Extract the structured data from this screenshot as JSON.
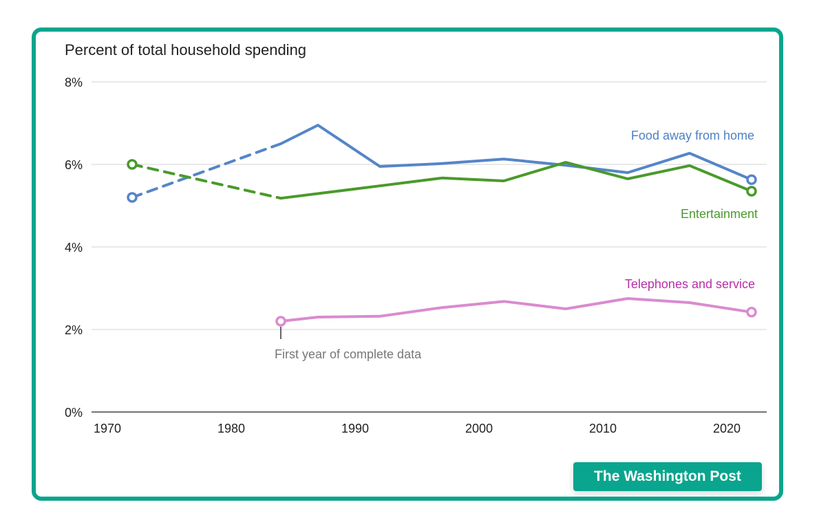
{
  "chart_data": {
    "type": "line",
    "title": "Percent of total household spending",
    "xlabel": "",
    "ylabel": "",
    "xlim": [
      1969,
      2024
    ],
    "ylim": [
      0,
      8
    ],
    "x_ticks": [
      1970,
      1980,
      1990,
      2000,
      2010,
      2020
    ],
    "y_ticks": [
      0,
      2,
      4,
      6,
      8
    ],
    "y_tick_labels": [
      "0%",
      "2%",
      "4%",
      "6%",
      "8%"
    ],
    "grid": true,
    "series": [
      {
        "name": "Food away from home",
        "color": "#5585c8",
        "label_color": "#4f7fc4",
        "dashed_until": 1984,
        "x": [
          1972,
          1984,
          1987,
          1992,
          1997,
          2002,
          2007,
          2012,
          2017,
          2022
        ],
        "y": [
          5.2,
          6.5,
          6.95,
          5.95,
          6.02,
          6.13,
          5.98,
          5.8,
          6.27,
          5.63
        ]
      },
      {
        "name": "Entertainment",
        "color": "#4a9a2a",
        "label_color": "#4a9a2a",
        "dashed_until": 1984,
        "x": [
          1972,
          1984,
          1992,
          1997,
          2002,
          2007,
          2012,
          2017,
          2022
        ],
        "y": [
          6.0,
          5.18,
          5.48,
          5.67,
          5.6,
          6.05,
          5.65,
          5.97,
          5.35
        ]
      },
      {
        "name": "Telephones and service",
        "color": "#d98bd0",
        "label_color": "#b62fa6",
        "dashed_until": null,
        "x": [
          1984,
          1987,
          1992,
          1997,
          2002,
          2007,
          2012,
          2017,
          2022
        ],
        "y": [
          2.2,
          2.3,
          2.32,
          2.53,
          2.68,
          2.5,
          2.75,
          2.65,
          2.42
        ]
      }
    ],
    "annotations": [
      {
        "text": "First year of complete data",
        "x": 1984,
        "y": 2.2
      }
    ]
  },
  "brand": "The Washington Post"
}
